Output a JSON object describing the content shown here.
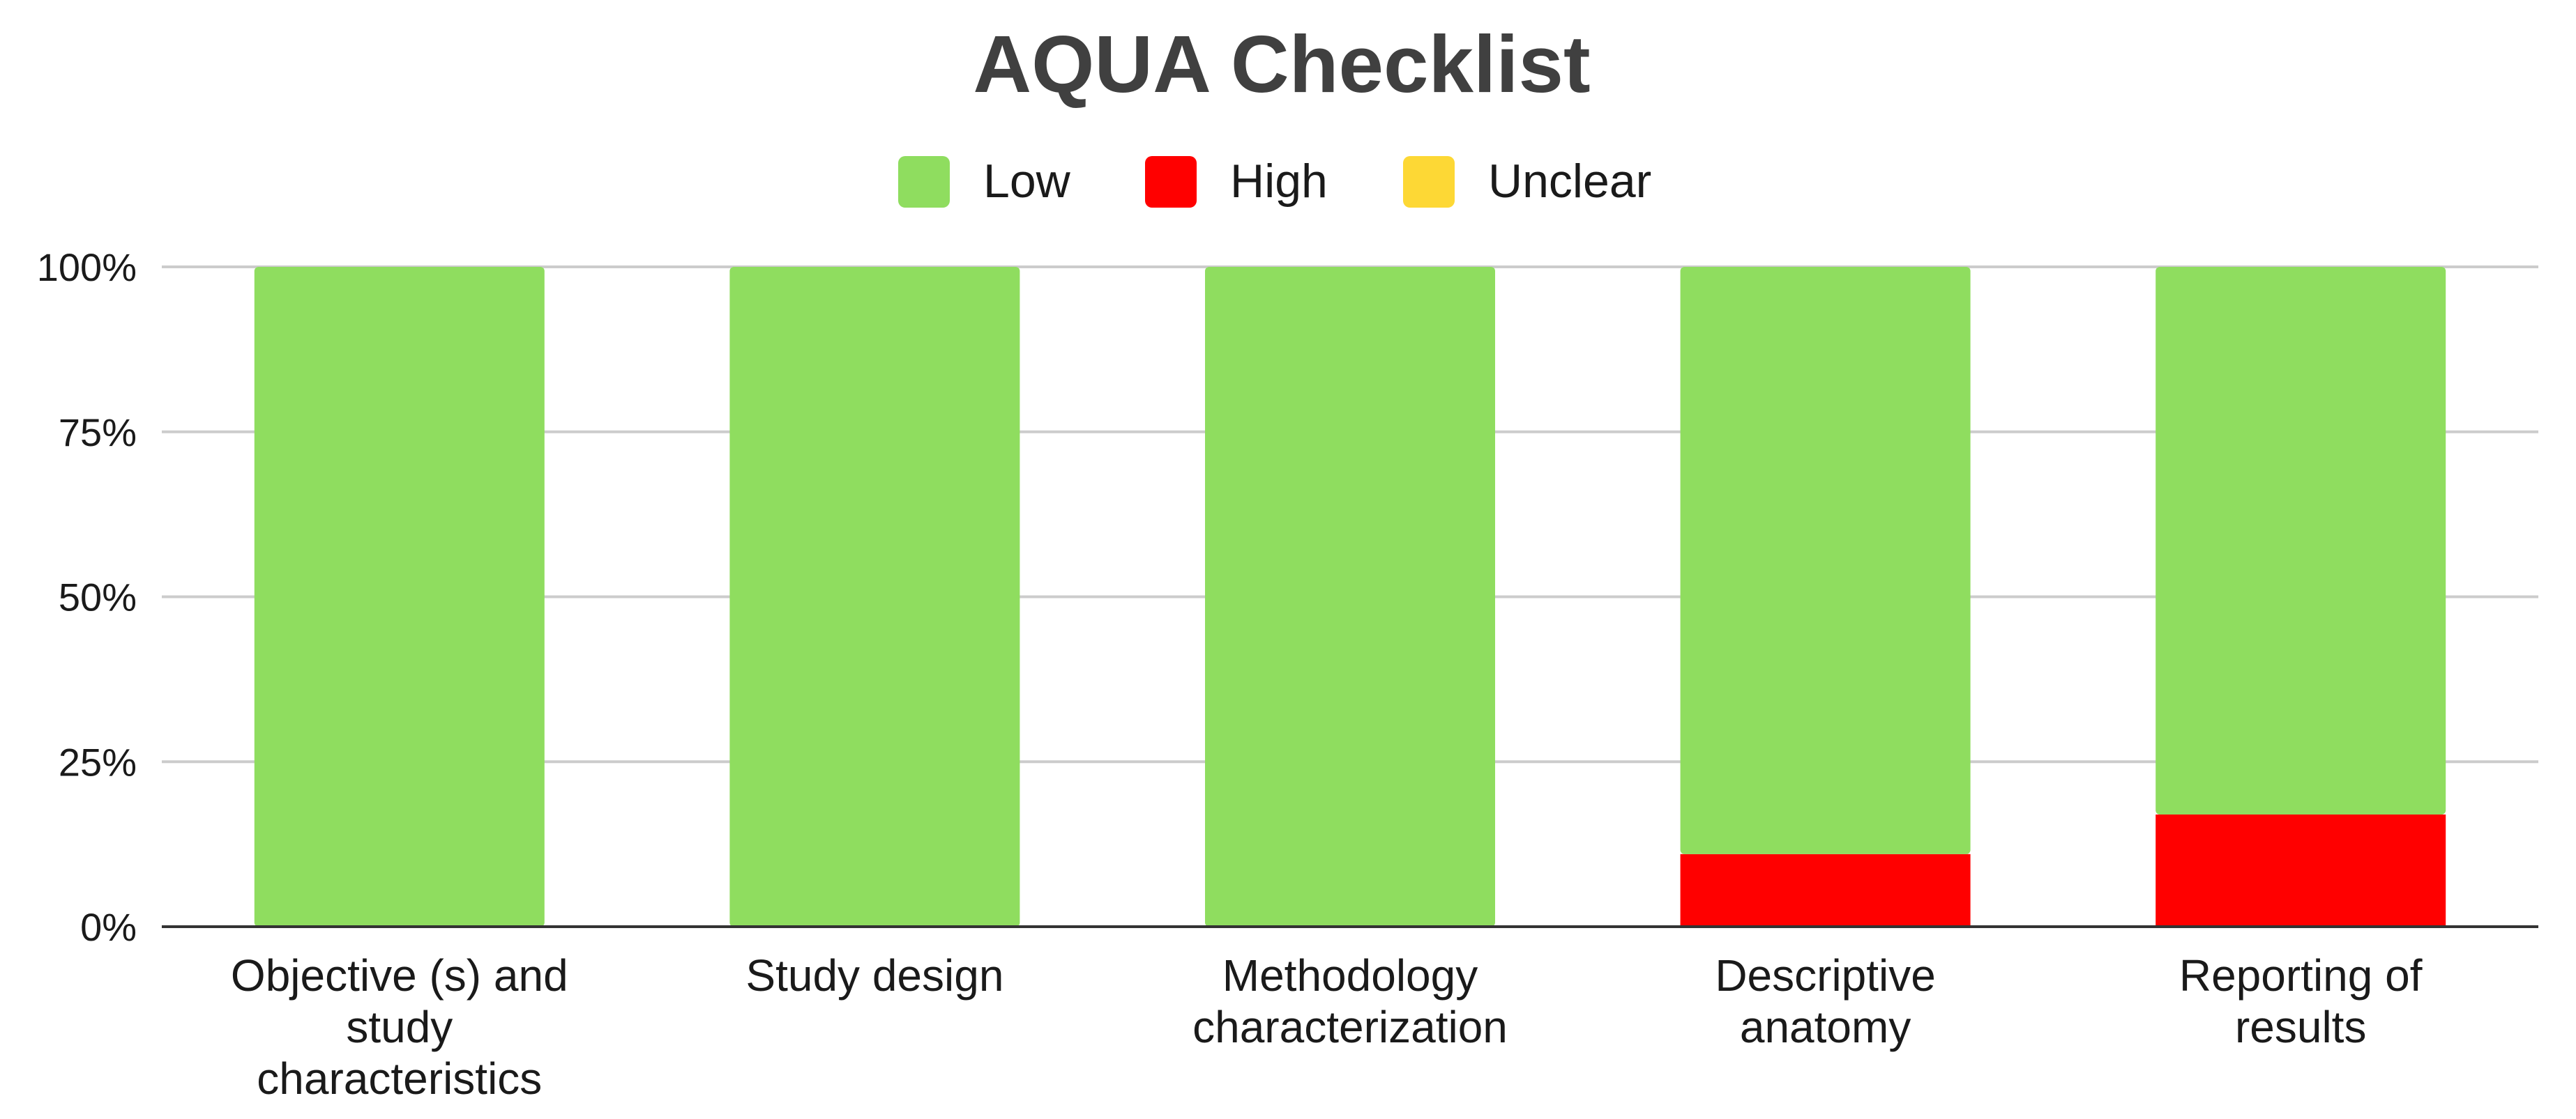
{
  "chart_data": {
    "type": "bar",
    "stacked": true,
    "title": "AQUA Checklist",
    "categories": [
      [
        "Objective (s) and",
        "study",
        "characteristics"
      ],
      [
        "Study design"
      ],
      [
        "Methodology",
        "characterization"
      ],
      [
        "Descriptive",
        "anatomy"
      ],
      [
        "Reporting of",
        "results"
      ]
    ],
    "series": [
      {
        "name": "High",
        "color": "#ff0000",
        "values": [
          0,
          0,
          0,
          11,
          17
        ]
      },
      {
        "name": "Low",
        "color": "#8fdd5f",
        "values": [
          100,
          100,
          100,
          89,
          83
        ]
      },
      {
        "name": "Unclear",
        "color": "#fdd835",
        "values": [
          0,
          0,
          0,
          0,
          0
        ]
      }
    ],
    "legend": {
      "placement": "top",
      "order": [
        "Low",
        "High",
        "Unclear"
      ]
    },
    "y_ticks": [
      "0%",
      "25%",
      "50%",
      "75%",
      "100%"
    ],
    "ylim": [
      0,
      100
    ],
    "xlabel": "",
    "ylabel": "",
    "grid": true
  }
}
